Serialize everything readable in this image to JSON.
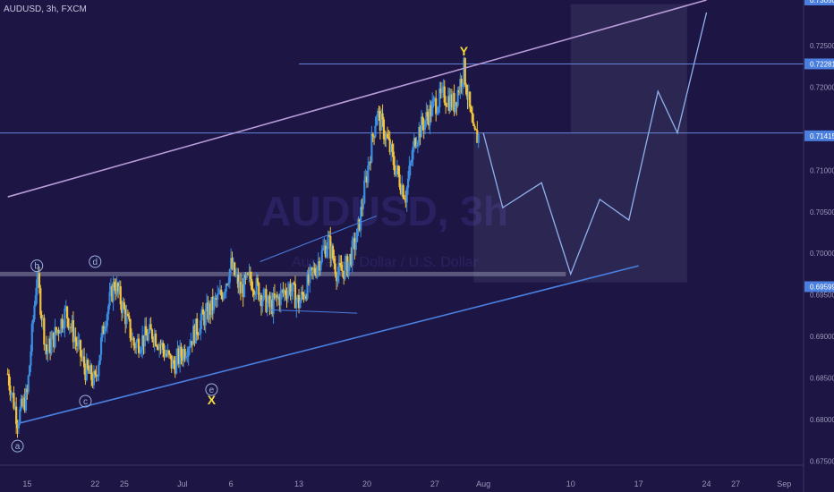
{
  "header": {
    "title": "AUDUSD, 3h, FXCM"
  },
  "watermark": {
    "symbol": "AUDUSD, 3h",
    "subtitle": "Australian Dollar / U.S. Dollar"
  },
  "colors": {
    "background": "#1d1645",
    "candle_up": "#3b8de0",
    "candle_down": "#f2c23a",
    "channel_upper": "#b79ad8",
    "channel_lower": "#4a7fe0",
    "horizontal_line": "#6d8fe6",
    "projection": "#8fb1ee",
    "wave_label": "#f5dc3b",
    "circle_label": "#9bb0e0",
    "axis_text": "#9a97b8",
    "price_tag": "#4a7fe0"
  },
  "chart_data": {
    "type": "candlestick",
    "symbol": "AUDUSD",
    "timeframe": "3h",
    "source": "FXCM",
    "ylim": [
      0.6745,
      0.7305
    ],
    "y_ticks": [
      "0.72500",
      "0.72000",
      "0.71000",
      "0.70500",
      "0.70000",
      "0.69500",
      "0.69000",
      "0.68500",
      "0.68000",
      "0.67500"
    ],
    "price_tags": [
      "0.73050",
      "0.72281",
      "0.71415",
      "0.69599"
    ],
    "x_ticks": [
      "15",
      "22",
      "25",
      "Jul",
      "6",
      "13",
      "20",
      "27",
      "Aug",
      "10",
      "17",
      "24",
      "27",
      "Sep"
    ],
    "x_tick_days": [
      15,
      22,
      25,
      31,
      36,
      43,
      50,
      57,
      62,
      71,
      78,
      85,
      88,
      93
    ],
    "path_anchors": [
      [
        13,
        0.6855
      ],
      [
        14,
        0.68
      ],
      [
        15,
        0.683
      ],
      [
        16,
        0.6975
      ],
      [
        17,
        0.688
      ],
      [
        19,
        0.693
      ],
      [
        21,
        0.686
      ],
      [
        22,
        0.6845
      ],
      [
        23,
        0.692
      ],
      [
        24,
        0.6965
      ],
      [
        25,
        0.693
      ],
      [
        26,
        0.689
      ],
      [
        28,
        0.6905
      ],
      [
        30,
        0.6865
      ],
      [
        31,
        0.688
      ],
      [
        33,
        0.692
      ],
      [
        35,
        0.695
      ],
      [
        36,
        0.6985
      ],
      [
        37,
        0.6955
      ],
      [
        38,
        0.697
      ],
      [
        40,
        0.6935
      ],
      [
        42,
        0.696
      ],
      [
        43,
        0.694
      ],
      [
        45,
        0.699
      ],
      [
        46,
        0.7015
      ],
      [
        47,
        0.6975
      ],
      [
        48,
        0.6985
      ],
      [
        49,
        0.702
      ],
      [
        50,
        0.7095
      ],
      [
        51,
        0.717
      ],
      [
        52,
        0.714
      ],
      [
        53,
        0.71
      ],
      [
        54,
        0.707
      ],
      [
        55,
        0.714
      ],
      [
        56,
        0.716
      ],
      [
        57,
        0.718
      ],
      [
        58,
        0.719
      ],
      [
        59,
        0.718
      ],
      [
        60,
        0.7222
      ],
      [
        61,
        0.714
      ],
      [
        61.5,
        0.7141
      ]
    ],
    "channel_upper": [
      [
        13,
        0.7068
      ],
      [
        85,
        0.7305
      ]
    ],
    "channel_lower": [
      [
        14,
        0.6795
      ],
      [
        78,
        0.6985
      ]
    ],
    "horizontal_levels": [
      0.7228,
      0.7145,
      0.6975
    ],
    "triangle_lines": [
      [
        [
          39,
          0.699
        ],
        [
          51,
          0.7045
        ]
      ],
      [
        [
          40,
          0.6932
        ],
        [
          49,
          0.6928
        ]
      ]
    ],
    "projection_path": [
      [
        62,
        0.7145
      ],
      [
        64,
        0.7055
      ],
      [
        68,
        0.7085
      ],
      [
        71,
        0.6975
      ],
      [
        74,
        0.7065
      ],
      [
        77,
        0.704
      ],
      [
        80,
        0.7195
      ],
      [
        82,
        0.7145
      ],
      [
        85,
        0.729
      ]
    ],
    "forecast_zones": [
      {
        "x": [
          61,
          71
        ],
        "y": [
          0.6965,
          0.7145
        ]
      },
      {
        "x": [
          71,
          83
        ],
        "y": [
          0.6965,
          0.73
        ]
      }
    ],
    "wave_labels": [
      {
        "text": "Y",
        "x": 60,
        "y": 0.7238
      },
      {
        "text": "X",
        "x": 34,
        "y": 0.6818
      }
    ],
    "circle_labels": [
      {
        "text": "a",
        "x": 14,
        "y": 0.6768
      },
      {
        "text": "b",
        "x": 16,
        "y": 0.6985
      },
      {
        "text": "c",
        "x": 21,
        "y": 0.6822
      },
      {
        "text": "d",
        "x": 22,
        "y": 0.699
      },
      {
        "text": "e",
        "x": 34,
        "y": 0.6836
      }
    ]
  }
}
